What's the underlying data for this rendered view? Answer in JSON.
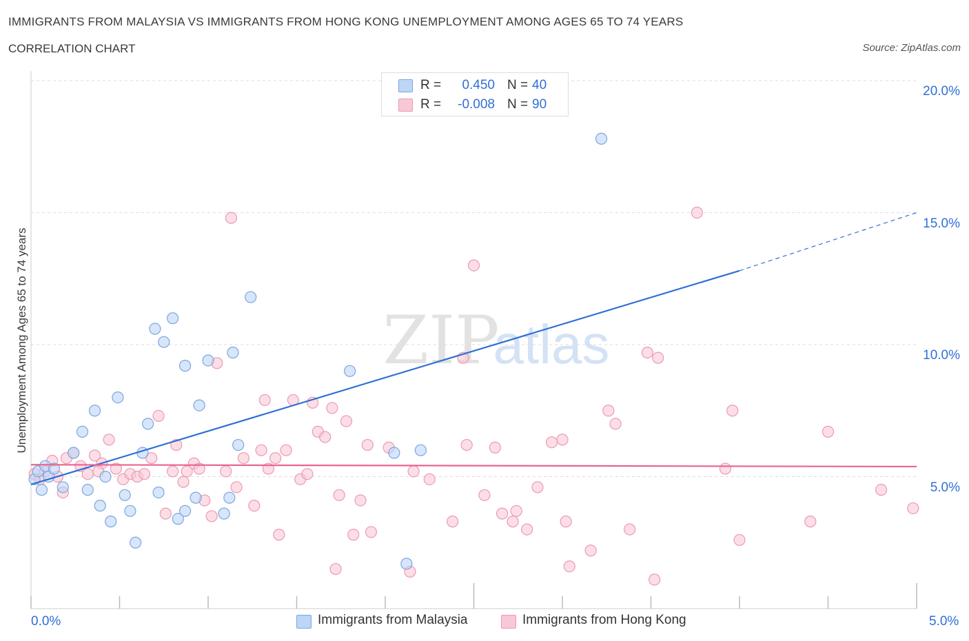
{
  "header": {
    "title": "IMMIGRANTS FROM MALAYSIA VS IMMIGRANTS FROM HONG KONG UNEMPLOYMENT AMONG AGES 65 TO 74 YEARS",
    "subtitle": "CORRELATION CHART",
    "source": "Source: ZipAtlas.com"
  },
  "watermark": {
    "zip": "ZIP",
    "atlas": "atlas"
  },
  "legend": {
    "rows": [
      {
        "r_label": "R =",
        "r_value": "0.450",
        "n_label": "N =",
        "n_value": "40"
      },
      {
        "r_label": "R =",
        "r_value": "-0.008",
        "n_label": "N =",
        "n_value": "90"
      }
    ]
  },
  "colors": {
    "malaysia_fill": "#bcd6f6",
    "malaysia_stroke": "#7aa6e0",
    "malaysia_line": "#2f6fd6",
    "hongkong_fill": "#f9c8d6",
    "hongkong_stroke": "#ee98b2",
    "hongkong_line": "#e8648f",
    "axis_label": "#2f6fd6",
    "grid": "#dddddd"
  },
  "chart_data": {
    "type": "scatter",
    "title": "IMMIGRANTS FROM MALAYSIA VS IMMIGRANTS FROM HONG KONG UNEMPLOYMENT AMONG AGES 65 TO 74 YEARS",
    "subtitle": "CORRELATION CHART",
    "xlabel": "",
    "ylabel": "Unemployment Among Ages 65 to 74 years",
    "xlim": [
      0,
      5
    ],
    "ylim": [
      0,
      20
    ],
    "x_tick_labels": [
      "0.0%",
      "5.0%"
    ],
    "y_ticks": [
      {
        "value": 5,
        "label": "5.0%"
      },
      {
        "value": 10,
        "label": "10.0%"
      },
      {
        "value": 15,
        "label": "15.0%"
      },
      {
        "value": 20,
        "label": "20.0%"
      }
    ],
    "grid": true,
    "legend_position": "top-center",
    "series": [
      {
        "name": "Immigrants from Malaysia",
        "R": 0.45,
        "N": 40,
        "trend": {
          "x0": 0.0,
          "y0": 4.7,
          "x1": 4.0,
          "y1": 12.8,
          "dashed_to_x": 5.0,
          "dashed_to_y": 15.0
        },
        "points": [
          [
            0.02,
            4.9
          ],
          [
            0.04,
            5.2
          ],
          [
            0.06,
            4.5
          ],
          [
            0.08,
            5.4
          ],
          [
            0.1,
            5.0
          ],
          [
            0.13,
            5.3
          ],
          [
            0.18,
            4.6
          ],
          [
            0.24,
            5.9
          ],
          [
            0.29,
            6.7
          ],
          [
            0.32,
            4.5
          ],
          [
            0.36,
            7.5
          ],
          [
            0.39,
            3.9
          ],
          [
            0.42,
            5.0
          ],
          [
            0.45,
            3.3
          ],
          [
            0.49,
            8.0
          ],
          [
            0.53,
            4.3
          ],
          [
            0.56,
            3.7
          ],
          [
            0.59,
            2.5
          ],
          [
            0.63,
            5.9
          ],
          [
            0.66,
            7.0
          ],
          [
            0.7,
            10.6
          ],
          [
            0.72,
            4.4
          ],
          [
            0.75,
            10.1
          ],
          [
            0.8,
            11.0
          ],
          [
            0.83,
            3.4
          ],
          [
            0.87,
            3.7
          ],
          [
            0.87,
            9.2
          ],
          [
            0.93,
            4.2
          ],
          [
            0.95,
            7.7
          ],
          [
            1.0,
            9.4
          ],
          [
            1.09,
            3.6
          ],
          [
            1.12,
            4.2
          ],
          [
            1.14,
            9.7
          ],
          [
            1.17,
            6.2
          ],
          [
            1.24,
            11.8
          ],
          [
            1.8,
            9.0
          ],
          [
            2.05,
            5.9
          ],
          [
            2.12,
            1.7
          ],
          [
            2.2,
            6.0
          ],
          [
            3.22,
            17.8
          ]
        ]
      },
      {
        "name": "Immigrants from Hong Kong",
        "R": -0.008,
        "N": 90,
        "trend": {
          "x0": 0.0,
          "y0": 5.45,
          "x1": 5.0,
          "y1": 5.38
        },
        "points": [
          [
            0.02,
            5.1
          ],
          [
            0.05,
            4.9
          ],
          [
            0.08,
            5.2
          ],
          [
            0.12,
            5.6
          ],
          [
            0.15,
            5.0
          ],
          [
            0.18,
            4.4
          ],
          [
            0.2,
            5.7
          ],
          [
            0.24,
            5.9
          ],
          [
            0.28,
            5.4
          ],
          [
            0.32,
            5.1
          ],
          [
            0.36,
            5.8
          ],
          [
            0.4,
            5.5
          ],
          [
            0.44,
            6.4
          ],
          [
            0.48,
            5.3
          ],
          [
            0.52,
            4.9
          ],
          [
            0.56,
            5.1
          ],
          [
            0.6,
            5.0
          ],
          [
            0.64,
            5.1
          ],
          [
            0.68,
            5.7
          ],
          [
            0.72,
            7.3
          ],
          [
            0.76,
            3.6
          ],
          [
            0.8,
            5.2
          ],
          [
            0.82,
            6.2
          ],
          [
            0.86,
            4.8
          ],
          [
            0.88,
            5.2
          ],
          [
            0.92,
            5.5
          ],
          [
            0.95,
            5.3
          ],
          [
            0.98,
            4.1
          ],
          [
            1.02,
            3.5
          ],
          [
            1.05,
            9.3
          ],
          [
            1.1,
            5.2
          ],
          [
            1.13,
            14.8
          ],
          [
            1.16,
            4.6
          ],
          [
            1.2,
            5.7
          ],
          [
            1.26,
            3.9
          ],
          [
            1.3,
            6.0
          ],
          [
            1.32,
            7.9
          ],
          [
            1.34,
            5.3
          ],
          [
            1.38,
            5.7
          ],
          [
            1.4,
            2.8
          ],
          [
            1.44,
            6.0
          ],
          [
            1.48,
            7.9
          ],
          [
            1.52,
            4.9
          ],
          [
            1.56,
            5.1
          ],
          [
            1.59,
            7.8
          ],
          [
            1.62,
            6.7
          ],
          [
            1.66,
            6.5
          ],
          [
            1.7,
            7.6
          ],
          [
            1.72,
            1.5
          ],
          [
            1.74,
            4.3
          ],
          [
            1.78,
            7.1
          ],
          [
            1.82,
            2.8
          ],
          [
            1.86,
            4.1
          ],
          [
            1.9,
            6.2
          ],
          [
            1.92,
            2.9
          ],
          [
            2.02,
            6.1
          ],
          [
            2.14,
            1.4
          ],
          [
            2.16,
            5.2
          ],
          [
            2.25,
            4.9
          ],
          [
            2.38,
            3.3
          ],
          [
            2.44,
            9.5
          ],
          [
            2.46,
            6.2
          ],
          [
            2.5,
            13.0
          ],
          [
            2.56,
            4.3
          ],
          [
            2.62,
            6.1
          ],
          [
            2.66,
            3.6
          ],
          [
            2.72,
            3.3
          ],
          [
            2.74,
            3.7
          ],
          [
            2.8,
            3.0
          ],
          [
            2.86,
            4.6
          ],
          [
            2.94,
            6.3
          ],
          [
            3.0,
            6.4
          ],
          [
            3.02,
            3.3
          ],
          [
            3.04,
            1.6
          ],
          [
            3.16,
            2.2
          ],
          [
            3.26,
            7.5
          ],
          [
            3.3,
            7.0
          ],
          [
            3.38,
            3.0
          ],
          [
            3.48,
            9.7
          ],
          [
            3.52,
            1.1
          ],
          [
            3.54,
            9.5
          ],
          [
            3.76,
            15.0
          ],
          [
            3.92,
            5.3
          ],
          [
            3.96,
            7.5
          ],
          [
            4.0,
            2.6
          ],
          [
            4.4,
            3.3
          ],
          [
            4.5,
            6.7
          ],
          [
            4.8,
            4.5
          ],
          [
            4.98,
            3.8
          ],
          [
            0.38,
            5.2
          ]
        ]
      }
    ]
  }
}
